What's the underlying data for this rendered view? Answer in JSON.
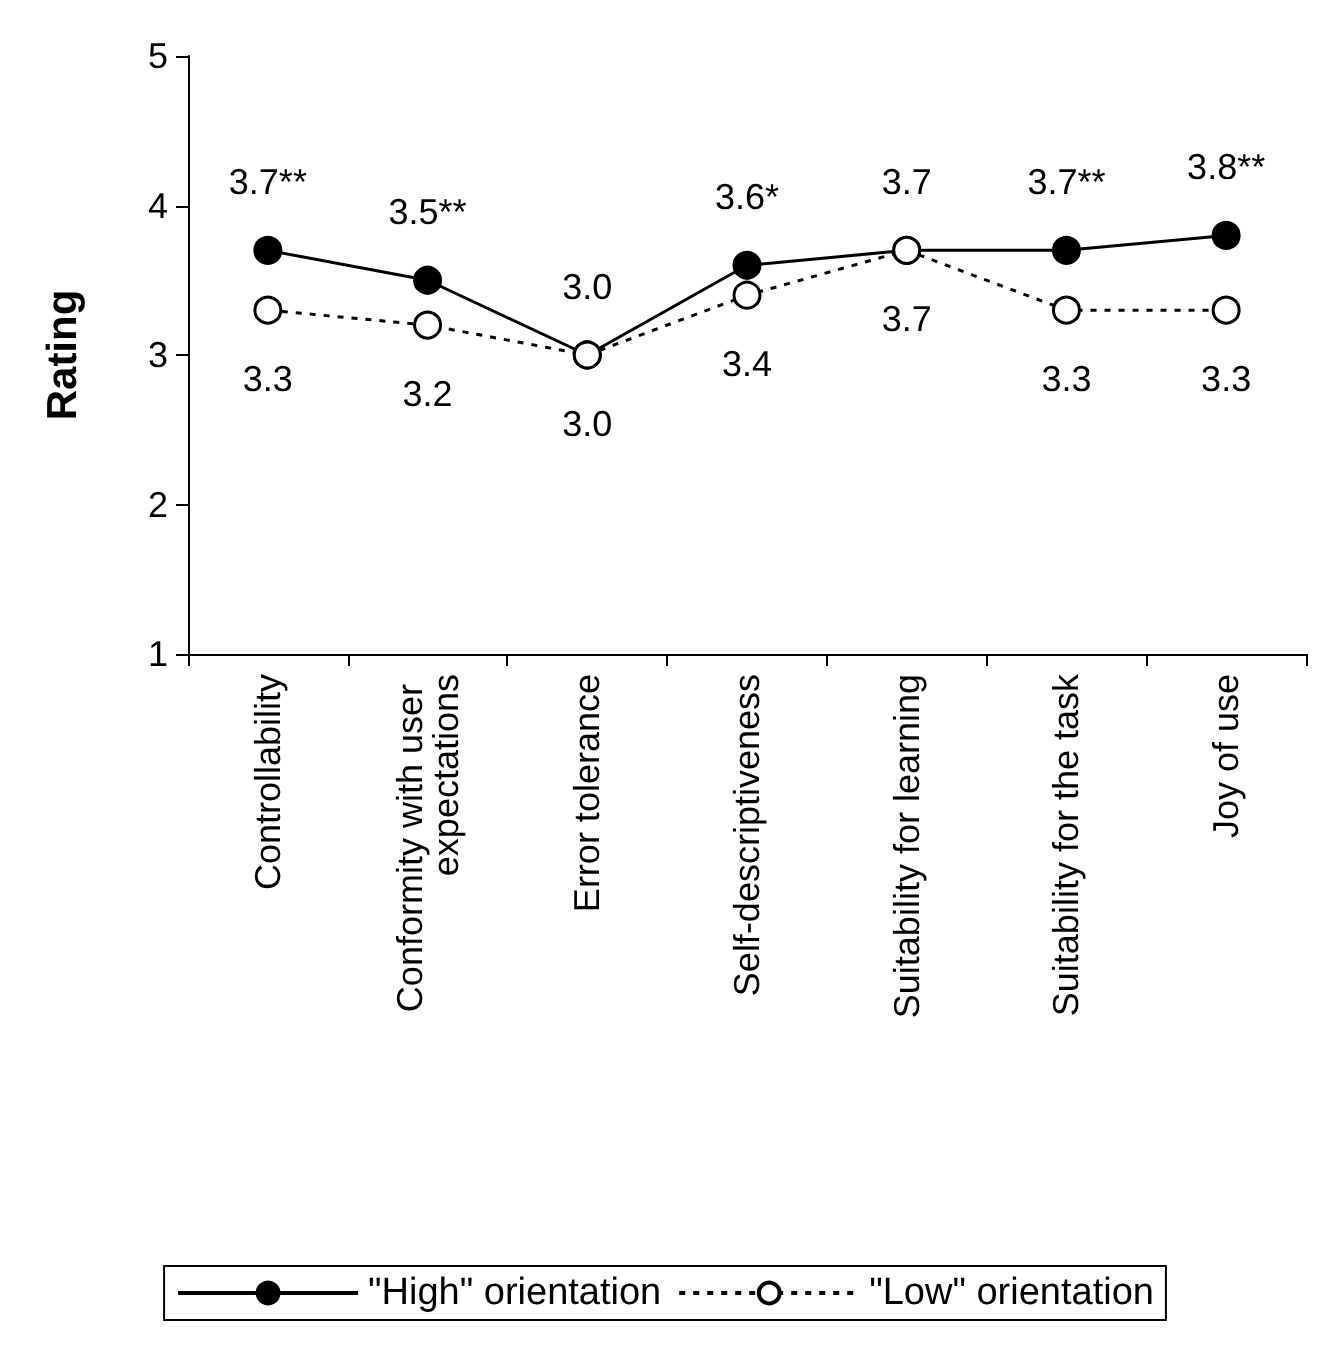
{
  "chart_data": {
    "type": "line",
    "ylabel": "Rating",
    "categories": [
      "Controllability",
      "Conformity with user expectations",
      "Error tolerance",
      "Self-descriptiveness",
      "Suitability for learning",
      "Suitability for the task",
      "Joy of use"
    ],
    "series": [
      {
        "name": "\"High\" orientation",
        "color": "#000000",
        "line_style": "solid",
        "values": [
          3.7,
          3.5,
          3.0,
          3.6,
          3.7,
          3.7,
          3.8
        ],
        "value_labels": [
          "3.7**",
          "3.5**",
          "3.0",
          "3.6*",
          "3.7",
          "3.7**",
          "3.8**"
        ]
      },
      {
        "name": "\"Low\" orientation",
        "color": "#000000",
        "line_style": "dashed",
        "values": [
          3.3,
          3.2,
          3.0,
          3.4,
          3.7,
          3.3,
          3.3
        ],
        "value_labels": [
          "3.3",
          "3.2",
          "3.0",
          "3.4",
          "3.7",
          "3.3",
          "3.3"
        ]
      }
    ],
    "ylim": [
      1,
      5
    ],
    "yticks": [
      1,
      2,
      3,
      4,
      5
    ],
    "grid": false,
    "legend": "bottom",
    "marker": "circle"
  }
}
